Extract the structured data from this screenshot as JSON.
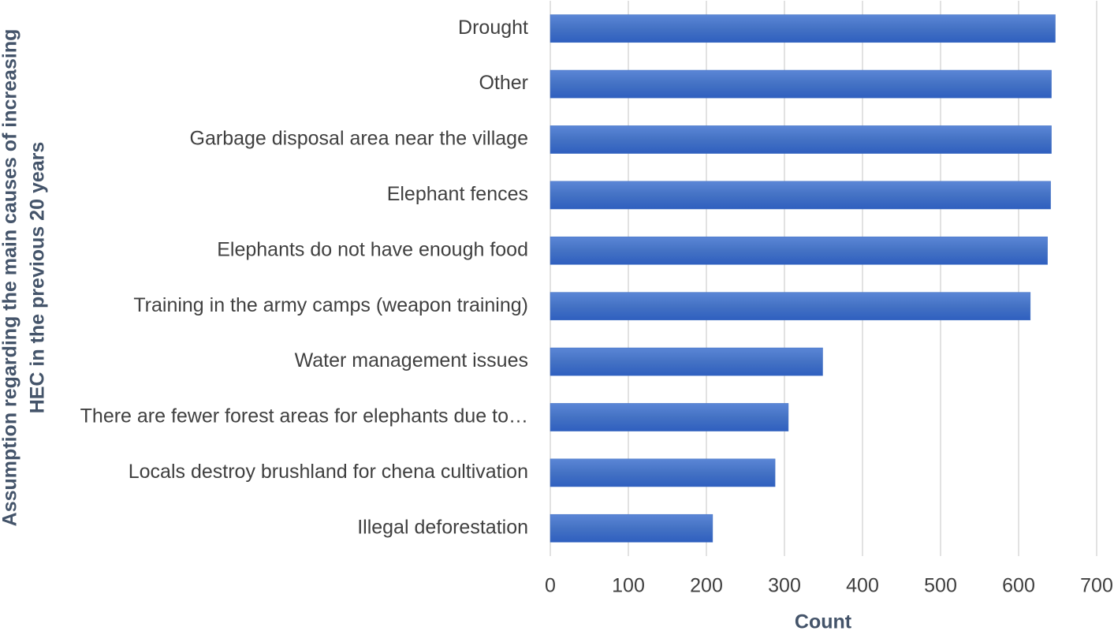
{
  "chart_data": {
    "type": "bar",
    "orientation": "horizontal",
    "xlabel": "Count",
    "ylabel": [
      "Assumption regarding the main causes of increasing",
      "HEC in the previous 20 years"
    ],
    "categories": [
      "Drought",
      "Other",
      "Garbage disposal area near the village",
      "Elephant fences",
      "Elephants do not have enough food",
      "Training in the army camps (weapon training)",
      "Water management issues",
      "There are fewer forest areas for elephants due to…",
      "Locals destroy brushland for chena cultivation",
      "Illegal deforestation"
    ],
    "values": [
      647,
      642,
      642,
      641,
      637,
      615,
      349,
      305,
      288,
      208
    ],
    "color": "#4472c4",
    "xlim": [
      0,
      700
    ],
    "xticks": [
      0,
      100,
      200,
      300,
      400,
      500,
      600,
      700
    ],
    "grid": true
  }
}
